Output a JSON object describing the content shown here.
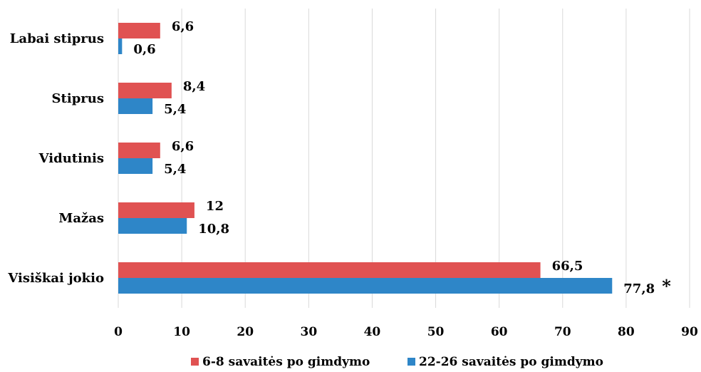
{
  "chart_data": {
    "type": "bar",
    "orientation": "horizontal",
    "categories": [
      "Labai stiprus",
      "Stiprus",
      "Vidutinis",
      "Mažas",
      "Visiškai jokio"
    ],
    "series": [
      {
        "name": "6-8 savaitės po gimdymo",
        "color": "#e05252",
        "values": [
          6.6,
          8.4,
          6.6,
          12,
          66.5
        ],
        "labels": [
          "6,6",
          "8,4",
          "6,6",
          "12",
          "66,5"
        ]
      },
      {
        "name": "22-26 savaitės po gimdymo",
        "color": "#2e86c8",
        "values": [
          0.6,
          5.4,
          5.4,
          10.8,
          77.8
        ],
        "labels": [
          "0,6",
          "5,4",
          "5,4",
          "10,8",
          "77,8"
        ]
      }
    ],
    "xlim": [
      0,
      90
    ],
    "xticks": [
      0,
      10,
      20,
      30,
      40,
      50,
      60,
      70,
      80,
      90
    ],
    "xtick_labels": [
      "0",
      "10",
      "20",
      "30",
      "40",
      "50",
      "60",
      "70",
      "80",
      "90"
    ],
    "grid": true,
    "legend_position": "bottom",
    "annotation": {
      "text": "*",
      "category": "Visiškai jokio",
      "series": 1
    }
  }
}
